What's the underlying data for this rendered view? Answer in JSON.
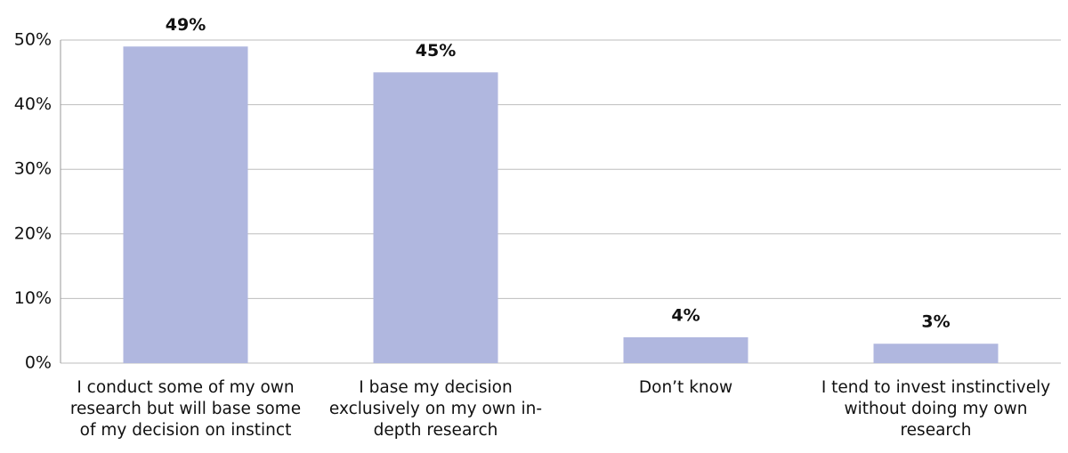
{
  "chart_data": {
    "type": "bar",
    "categories": [
      "I conduct some of my own research but will base some of my decision on instinct",
      "I base my decision exclusively on my own in-depth research",
      "Don’t know",
      "I tend to invest instinctively without doing my own research"
    ],
    "values": [
      49,
      45,
      4,
      3
    ],
    "value_labels": [
      "49%",
      "45%",
      "4%",
      "3%"
    ],
    "color": "#b0b7df",
    "ylim": [
      0,
      50
    ],
    "yticks": [
      {
        "value": 0,
        "label": "0%"
      },
      {
        "value": 10,
        "label": "10%"
      },
      {
        "value": 20,
        "label": "20%"
      },
      {
        "value": 30,
        "label": "30%"
      },
      {
        "value": 40,
        "label": "40%"
      },
      {
        "value": 50,
        "label": "50%"
      }
    ],
    "grid": true
  }
}
